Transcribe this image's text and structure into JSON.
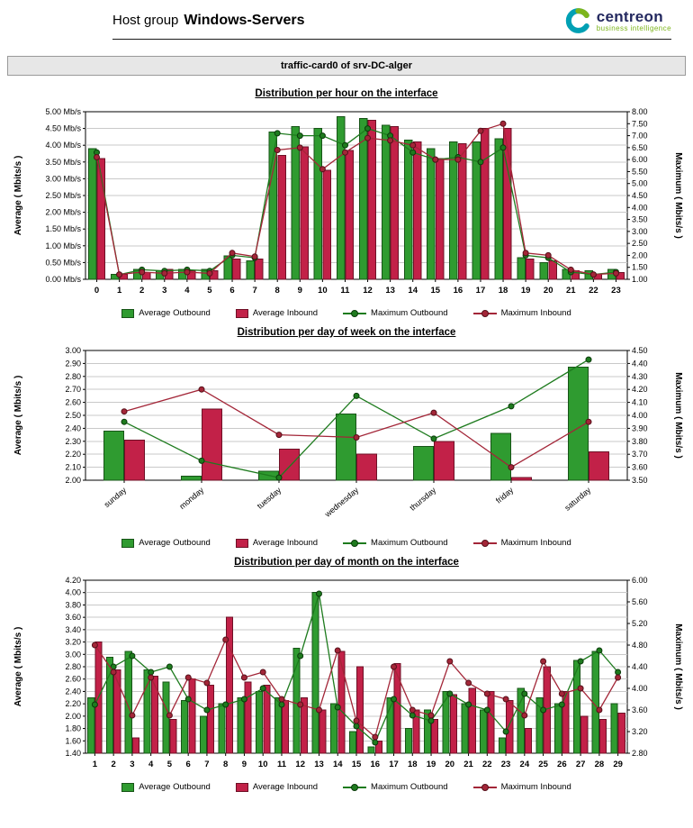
{
  "header": {
    "title_prefix": "Host group",
    "host_group": "Windows-Servers",
    "logo_text": "centreon",
    "logo_tagline": "business intelligence"
  },
  "report_title": "traffic-card0 of srv-DC-alger",
  "legend": {
    "avg_out": "Average Outbound",
    "avg_in": "Average Inbound",
    "max_out": "Maximum Outbound",
    "max_in": "Maximum Inbound"
  },
  "colors": {
    "avg_out_fill": "#2f9b30",
    "avg_out_stroke": "#175417",
    "avg_in_fill": "#c22148",
    "avg_in_stroke": "#6e1026",
    "max_out_line": "#1e7b1e",
    "max_out_marker": "#0a3a0a",
    "max_in_line": "#a32638",
    "max_in_marker": "#55101a",
    "grid": "#c9c9c9",
    "logo_teal": "#00a0b4",
    "logo_green": "#7db51c",
    "logo_navy": "#23285f"
  },
  "chart_data": [
    {
      "type": "bar",
      "title": "Distribution per hour on the interface",
      "categories": [
        "0",
        "1",
        "2",
        "3",
        "4",
        "5",
        "6",
        "7",
        "8",
        "9",
        "10",
        "11",
        "12",
        "13",
        "14",
        "15",
        "16",
        "17",
        "18",
        "19",
        "20",
        "21",
        "22",
        "23"
      ],
      "x_label_rotate": false,
      "left_axis": {
        "label": "Average ( Mbits/s )",
        "min": 0.0,
        "max": 5.0,
        "step": 0.5,
        "decimals": 2,
        "suffix": " Mb/s"
      },
      "right_axis": {
        "label": "Maximum ( Mbits/s )",
        "min": 1.0,
        "max": 8.0,
        "step": 0.5,
        "decimals": 2
      },
      "series": [
        {
          "name": "Average Outbound",
          "role": "avg_out",
          "kind": "bar",
          "axis": "left",
          "values": [
            3.9,
            0.15,
            0.3,
            0.25,
            0.3,
            0.3,
            0.7,
            0.55,
            4.4,
            4.55,
            4.5,
            4.85,
            4.8,
            4.6,
            4.15,
            3.9,
            4.1,
            4.1,
            4.2,
            0.65,
            0.5,
            0.3,
            0.25,
            0.3
          ]
        },
        {
          "name": "Average Inbound",
          "role": "avg_in",
          "kind": "bar",
          "axis": "left",
          "values": [
            3.6,
            0.15,
            0.2,
            0.3,
            0.25,
            0.25,
            0.6,
            0.6,
            3.7,
            3.95,
            3.25,
            3.85,
            4.75,
            4.55,
            4.1,
            3.6,
            4.05,
            4.5,
            4.5,
            0.6,
            0.55,
            0.25,
            0.15,
            0.2
          ]
        },
        {
          "name": "Maximum Outbound",
          "role": "max_out",
          "kind": "line",
          "axis": "right",
          "values": [
            6.3,
            1.2,
            1.4,
            1.35,
            1.4,
            1.35,
            2.0,
            1.9,
            7.1,
            7.0,
            7.0,
            6.6,
            7.3,
            7.0,
            6.3,
            6.0,
            6.1,
            5.9,
            6.5,
            2.0,
            1.9,
            1.3,
            1.2,
            1.3
          ]
        },
        {
          "name": "Maximum Inbound",
          "role": "max_in",
          "kind": "line",
          "axis": "right",
          "values": [
            6.1,
            1.2,
            1.3,
            1.25,
            1.3,
            1.25,
            2.1,
            1.95,
            6.4,
            6.5,
            5.6,
            6.3,
            6.9,
            6.8,
            6.6,
            6.0,
            6.0,
            7.2,
            7.5,
            2.1,
            2.0,
            1.4,
            1.2,
            1.25
          ]
        }
      ]
    },
    {
      "type": "bar",
      "title": "Distribution per day of week on the interface",
      "categories": [
        "sunday",
        "monday",
        "tuesday",
        "wednesday",
        "thursday",
        "friday",
        "saturday"
      ],
      "x_label_rotate": true,
      "left_axis": {
        "label": "Average ( Mbits/s )",
        "min": 2.0,
        "max": 3.0,
        "step": 0.1,
        "decimals": 2,
        "suffix": ""
      },
      "right_axis": {
        "label": "Maximum ( Mbits/s )",
        "min": 3.5,
        "max": 4.5,
        "step": 0.1,
        "decimals": 2
      },
      "series": [
        {
          "name": "Average Outbound",
          "role": "avg_out",
          "kind": "bar",
          "axis": "left",
          "values": [
            2.38,
            2.03,
            2.07,
            2.51,
            2.26,
            2.36,
            2.87
          ]
        },
        {
          "name": "Average Inbound",
          "role": "avg_in",
          "kind": "bar",
          "axis": "left",
          "values": [
            2.31,
            2.55,
            2.24,
            2.2,
            2.3,
            2.02,
            2.22
          ]
        },
        {
          "name": "Maximum Outbound",
          "role": "max_out",
          "kind": "line",
          "axis": "right",
          "values": [
            3.95,
            3.65,
            3.52,
            4.15,
            3.82,
            4.07,
            4.43
          ]
        },
        {
          "name": "Maximum Inbound",
          "role": "max_in",
          "kind": "line",
          "axis": "right",
          "values": [
            4.03,
            4.2,
            3.85,
            3.83,
            4.02,
            3.6,
            3.95
          ]
        }
      ]
    },
    {
      "type": "bar",
      "title": "Distribution per day of month on the interface",
      "categories": [
        "1",
        "2",
        "3",
        "4",
        "5",
        "6",
        "7",
        "8",
        "9",
        "10",
        "11",
        "12",
        "13",
        "14",
        "15",
        "16",
        "17",
        "18",
        "19",
        "20",
        "21",
        "22",
        "23",
        "24",
        "25",
        "26",
        "27",
        "28",
        "29"
      ],
      "x_label_rotate": false,
      "left_axis": {
        "label": "Average ( Mbits/s )",
        "min": 1.4,
        "max": 4.2,
        "step": 0.2,
        "decimals": 2,
        "suffix": ""
      },
      "right_axis": {
        "label": "Maximum ( Mbits/s )",
        "min": 2.8,
        "max": 6.0,
        "step": 0.4,
        "decimals": 2
      },
      "series": [
        {
          "name": "Average Outbound",
          "role": "avg_out",
          "kind": "bar",
          "axis": "left",
          "values": [
            2.3,
            2.95,
            3.05,
            2.75,
            2.55,
            2.25,
            2.0,
            2.2,
            2.3,
            2.4,
            2.3,
            3.1,
            4.0,
            2.2,
            1.75,
            1.5,
            2.3,
            1.8,
            2.1,
            2.4,
            2.2,
            2.1,
            1.65,
            2.45,
            2.3,
            2.2,
            2.9,
            3.05,
            2.2
          ]
        },
        {
          "name": "Average Inbound",
          "role": "avg_in",
          "kind": "bar",
          "axis": "left",
          "values": [
            3.2,
            2.75,
            1.65,
            2.65,
            1.95,
            2.6,
            2.5,
            3.6,
            2.55,
            2.5,
            2.25,
            2.3,
            2.1,
            3.05,
            2.8,
            1.6,
            2.85,
            2.1,
            1.95,
            2.35,
            2.45,
            2.4,
            2.25,
            1.8,
            2.8,
            2.4,
            2.0,
            1.95,
            2.05
          ]
        },
        {
          "name": "Maximum Outbound",
          "role": "max_out",
          "kind": "line",
          "axis": "right",
          "values": [
            3.7,
            4.4,
            4.6,
            4.3,
            4.4,
            3.8,
            3.6,
            3.7,
            3.8,
            4.0,
            3.7,
            4.6,
            5.75,
            3.65,
            3.3,
            3.0,
            3.8,
            3.5,
            3.4,
            3.9,
            3.7,
            3.6,
            3.2,
            3.9,
            3.6,
            3.7,
            4.5,
            4.7,
            4.3
          ]
        },
        {
          "name": "Maximum Inbound",
          "role": "max_in",
          "kind": "line",
          "axis": "right",
          "values": [
            4.8,
            4.3,
            3.5,
            4.2,
            3.5,
            4.2,
            4.1,
            4.9,
            4.2,
            4.3,
            3.8,
            3.7,
            3.6,
            4.7,
            3.4,
            3.1,
            4.4,
            3.6,
            3.5,
            4.5,
            4.1,
            3.9,
            3.8,
            3.5,
            4.5,
            3.9,
            4.0,
            3.6,
            4.2
          ]
        }
      ]
    }
  ]
}
